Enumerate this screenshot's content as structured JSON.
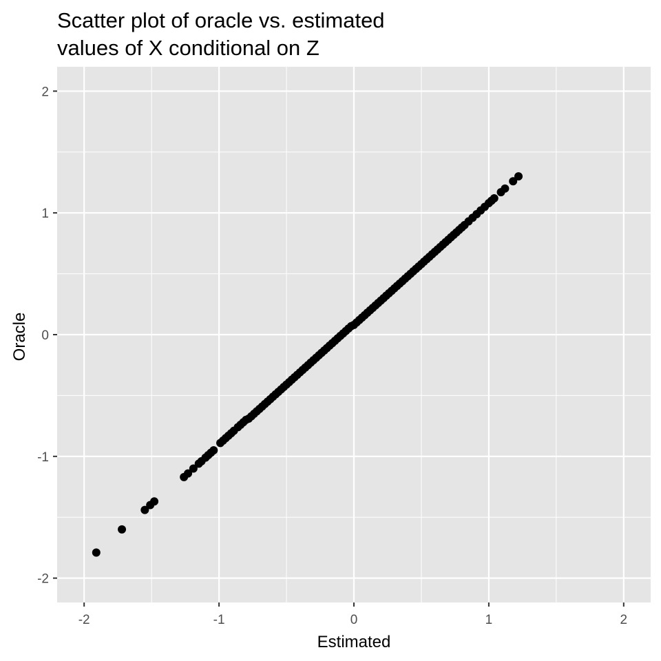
{
  "chart_data": {
    "type": "scatter",
    "title_lines": [
      "Scatter plot of oracle vs. estimated",
      "values of X conditional on Z"
    ],
    "xlabel": "Estimated",
    "ylabel": "Oracle",
    "xlim": [
      -2.2,
      2.2
    ],
    "ylim": [
      -2.2,
      2.2
    ],
    "x_ticks": [
      -2,
      -1,
      0,
      1,
      2
    ],
    "y_ticks": [
      -2,
      -1,
      0,
      1,
      2
    ],
    "x_tick_labels": [
      "-2",
      "-1",
      "0",
      "1",
      "2"
    ],
    "y_tick_labels": [
      "-2",
      "-1",
      "0",
      "1",
      "2"
    ],
    "grid": true,
    "legend": "none",
    "point_color": "#000000",
    "panel_background": "#e5e5e5",
    "grid_color": "#ffffff",
    "points": [
      [
        -1.91,
        -1.79
      ],
      [
        -1.72,
        -1.6
      ],
      [
        -1.55,
        -1.44
      ],
      [
        -1.51,
        -1.4
      ],
      [
        -1.48,
        -1.37
      ],
      [
        -1.26,
        -1.17
      ],
      [
        -1.23,
        -1.14
      ],
      [
        -1.19,
        -1.1
      ],
      [
        -1.15,
        -1.06
      ],
      [
        -1.13,
        -1.04
      ],
      [
        -1.1,
        -1.01
      ],
      [
        -1.08,
        -0.99
      ],
      [
        -1.06,
        -0.97
      ],
      [
        -1.04,
        -0.95
      ],
      [
        -0.99,
        -0.89
      ],
      [
        -0.97,
        -0.87
      ],
      [
        -0.95,
        -0.85
      ],
      [
        -0.93,
        -0.83
      ],
      [
        -0.91,
        -0.81
      ],
      [
        -0.89,
        -0.79
      ],
      [
        -0.86,
        -0.76
      ],
      [
        -0.84,
        -0.74
      ],
      [
        -0.82,
        -0.72
      ],
      [
        -0.8,
        -0.7
      ],
      [
        -0.78,
        -0.69
      ],
      [
        -0.76,
        -0.67
      ],
      [
        -0.74,
        -0.65
      ],
      [
        -0.72,
        -0.63
      ],
      [
        -0.7,
        -0.61
      ],
      [
        -0.68,
        -0.59
      ],
      [
        -0.66,
        -0.57
      ],
      [
        -0.64,
        -0.55
      ],
      [
        -0.62,
        -0.53
      ],
      [
        -0.6,
        -0.51
      ],
      [
        -0.58,
        -0.49
      ],
      [
        -0.56,
        -0.47
      ],
      [
        -0.54,
        -0.45
      ],
      [
        -0.52,
        -0.43
      ],
      [
        -0.5,
        -0.41
      ],
      [
        -0.48,
        -0.39
      ],
      [
        -0.46,
        -0.37
      ],
      [
        -0.44,
        -0.35
      ],
      [
        -0.42,
        -0.33
      ],
      [
        -0.4,
        -0.31
      ],
      [
        -0.38,
        -0.29
      ],
      [
        -0.36,
        -0.27
      ],
      [
        -0.34,
        -0.25
      ],
      [
        -0.32,
        -0.23
      ],
      [
        -0.3,
        -0.21
      ],
      [
        -0.28,
        -0.19
      ],
      [
        -0.26,
        -0.17
      ],
      [
        -0.24,
        -0.15
      ],
      [
        -0.22,
        -0.13
      ],
      [
        -0.2,
        -0.11
      ],
      [
        -0.18,
        -0.09
      ],
      [
        -0.16,
        -0.07
      ],
      [
        -0.14,
        -0.05
      ],
      [
        -0.12,
        -0.03
      ],
      [
        -0.1,
        -0.01
      ],
      [
        -0.08,
        0.01
      ],
      [
        -0.06,
        0.03
      ],
      [
        -0.04,
        0.05
      ],
      [
        -0.02,
        0.07
      ],
      [
        0.0,
        0.08
      ],
      [
        0.02,
        0.1
      ],
      [
        0.04,
        0.12
      ],
      [
        0.06,
        0.14
      ],
      [
        0.08,
        0.16
      ],
      [
        0.1,
        0.18
      ],
      [
        0.12,
        0.2
      ],
      [
        0.14,
        0.22
      ],
      [
        0.16,
        0.24
      ],
      [
        0.18,
        0.26
      ],
      [
        0.2,
        0.28
      ],
      [
        0.22,
        0.3
      ],
      [
        0.24,
        0.32
      ],
      [
        0.26,
        0.34
      ],
      [
        0.28,
        0.36
      ],
      [
        0.3,
        0.38
      ],
      [
        0.32,
        0.4
      ],
      [
        0.34,
        0.42
      ],
      [
        0.36,
        0.44
      ],
      [
        0.38,
        0.46
      ],
      [
        0.4,
        0.48
      ],
      [
        0.42,
        0.5
      ],
      [
        0.44,
        0.52
      ],
      [
        0.46,
        0.54
      ],
      [
        0.48,
        0.56
      ],
      [
        0.5,
        0.58
      ],
      [
        0.52,
        0.6
      ],
      [
        0.54,
        0.62
      ],
      [
        0.56,
        0.64
      ],
      [
        0.58,
        0.66
      ],
      [
        0.6,
        0.68
      ],
      [
        0.62,
        0.7
      ],
      [
        0.64,
        0.72
      ],
      [
        0.66,
        0.74
      ],
      [
        0.68,
        0.76
      ],
      [
        0.7,
        0.78
      ],
      [
        0.72,
        0.8
      ],
      [
        0.74,
        0.82
      ],
      [
        0.76,
        0.84
      ],
      [
        0.78,
        0.86
      ],
      [
        0.8,
        0.88
      ],
      [
        0.82,
        0.9
      ],
      [
        0.85,
        0.93
      ],
      [
        0.88,
        0.96
      ],
      [
        0.91,
        0.99
      ],
      [
        0.94,
        1.02
      ],
      [
        0.97,
        1.05
      ],
      [
        1.0,
        1.08
      ],
      [
        1.02,
        1.1
      ],
      [
        1.04,
        1.12
      ],
      [
        1.09,
        1.17
      ],
      [
        1.12,
        1.2
      ],
      [
        1.18,
        1.26
      ],
      [
        1.22,
        1.3
      ]
    ]
  }
}
